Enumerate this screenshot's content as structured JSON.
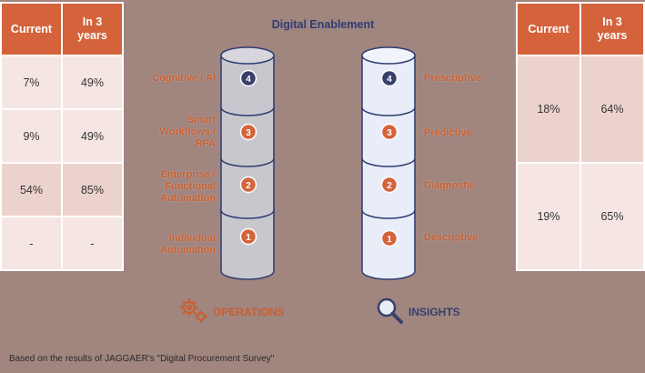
{
  "title": "Digital Enablement",
  "left_table": {
    "headers": [
      "Current",
      "In 3\nyears"
    ],
    "rows": [
      [
        "7%",
        "49%"
      ],
      [
        "9%",
        "49%"
      ],
      [
        "54%",
        "85%"
      ],
      [
        "-",
        "-"
      ]
    ]
  },
  "right_table": {
    "headers": [
      "Current",
      "In 3\nyears"
    ],
    "rows": [
      [
        "18%",
        "64%"
      ],
      [
        "19%",
        "65%"
      ]
    ]
  },
  "operations": {
    "label": "OPERATIONS",
    "icon": "gears-icon",
    "levels": [
      {
        "number": "4",
        "label": "Cognitive / AI"
      },
      {
        "number": "3",
        "label": "Smart\nWorkflows /\nRPA"
      },
      {
        "number": "2",
        "label": "Enterprise /\nFunctional\nAutomation"
      },
      {
        "number": "1",
        "label": "Individual\nAutomation"
      }
    ]
  },
  "insights": {
    "label": "INSIGHTS",
    "icon": "magnifier-icon",
    "levels": [
      {
        "number": "4",
        "label": "Prescriptive"
      },
      {
        "number": "3",
        "label": "Predictive"
      },
      {
        "number": "2",
        "label": "Diagnostic"
      },
      {
        "number": "1",
        "label": "Descriptive"
      }
    ]
  },
  "colors": {
    "background": "#a1857f",
    "accent_orange": "#d4633c",
    "navy": "#2e3d72",
    "operations_cylinder": "#c7c7cd",
    "insights_cylinder": "#e8edf8"
  },
  "footer": "Based on the results of JAGGAER's \"Digital Procurement Survey\""
}
